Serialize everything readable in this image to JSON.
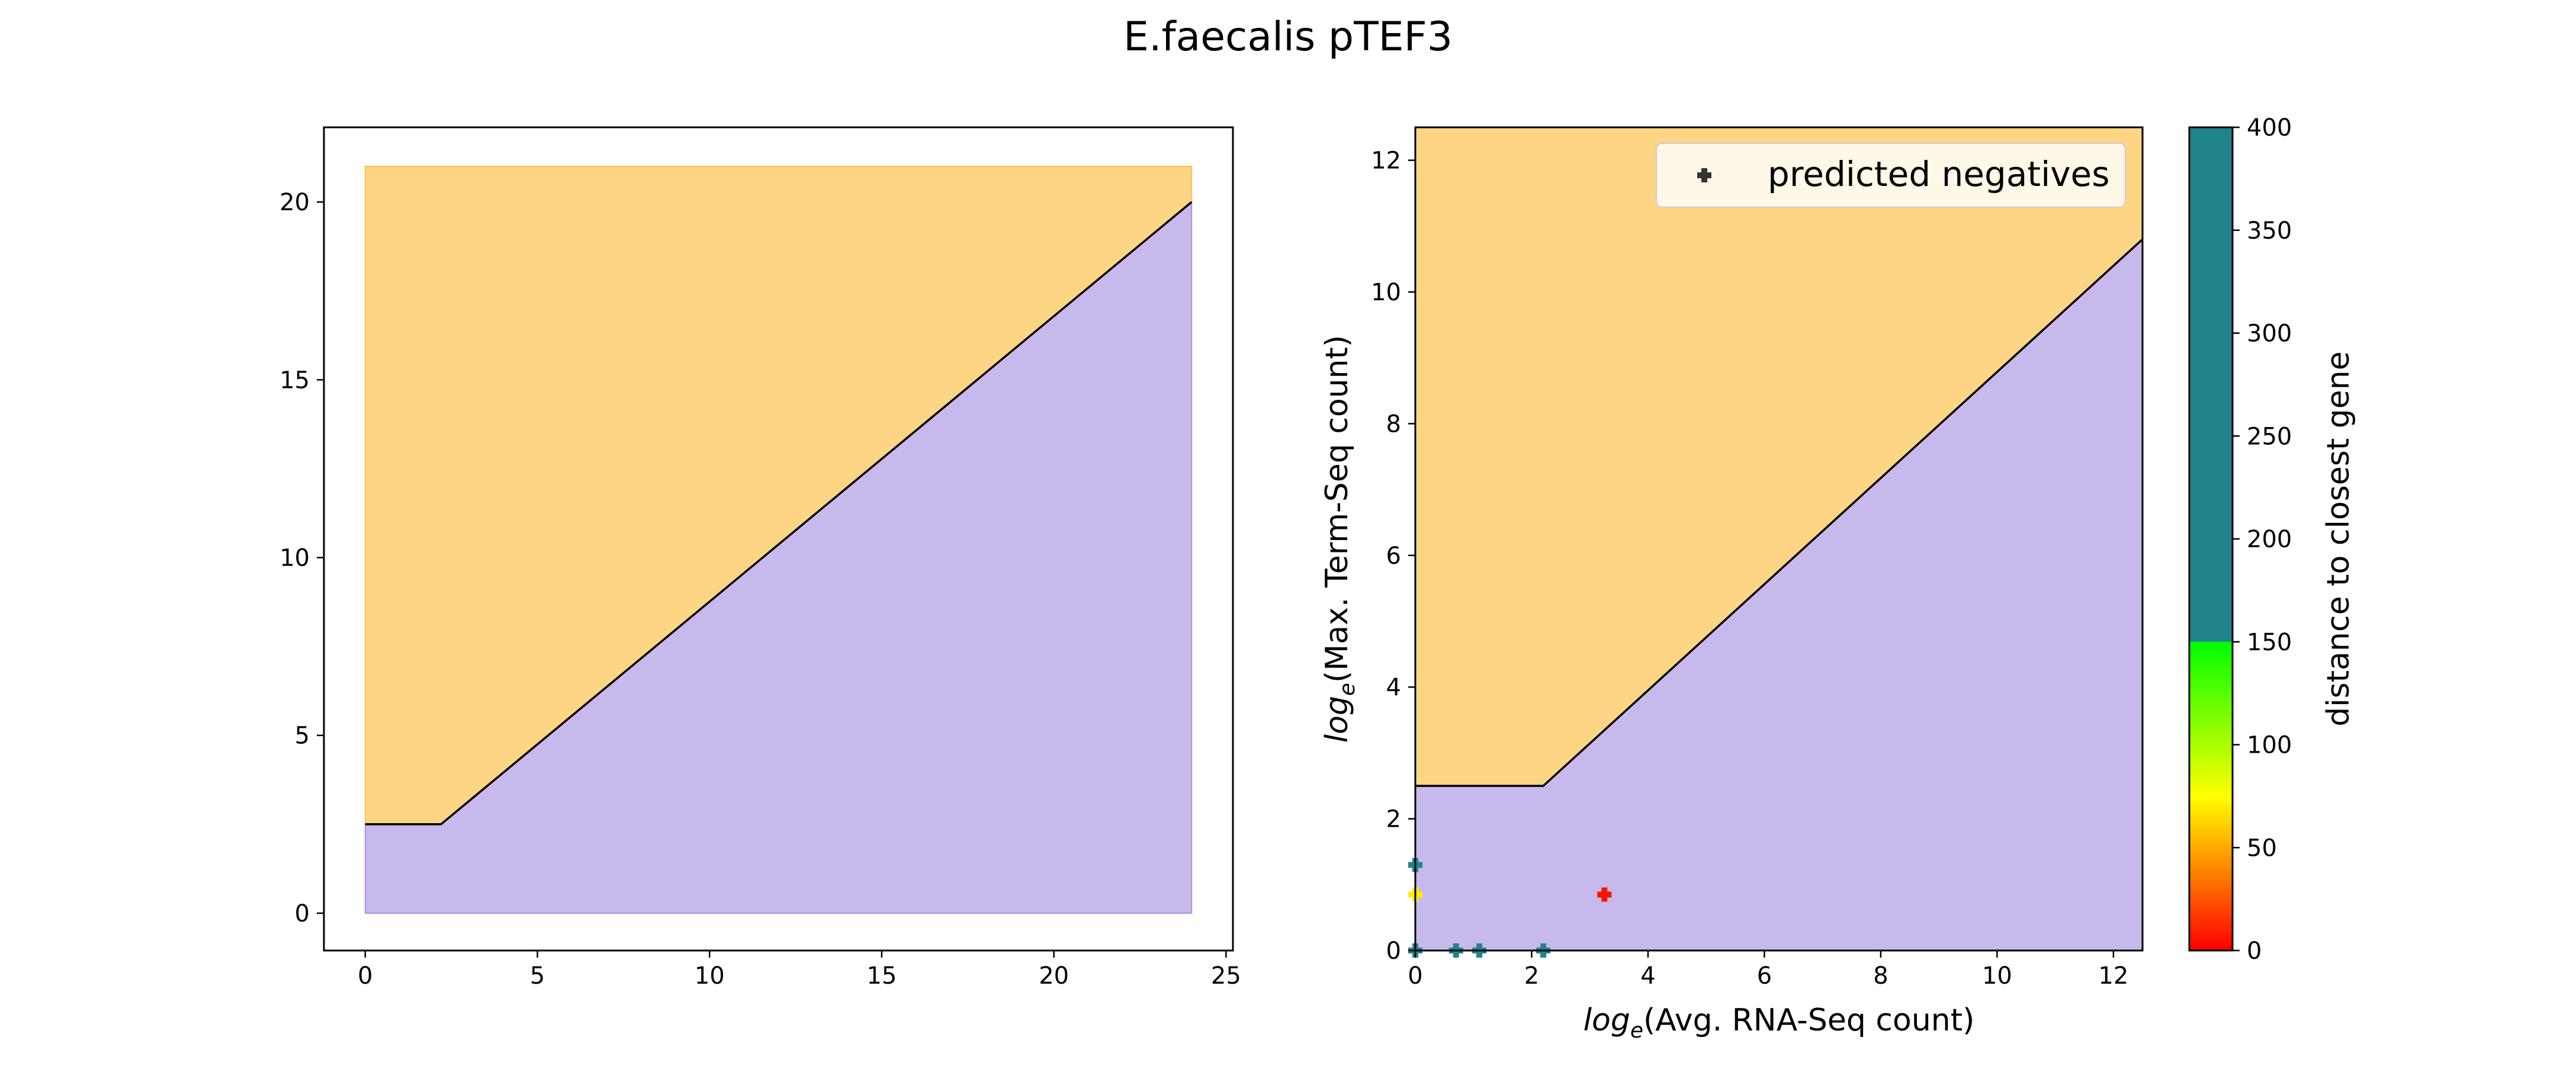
{
  "figure": {
    "title": "E.faecalis pTEF3"
  },
  "chart_data": [
    {
      "type": "area",
      "title": "",
      "xlabel": "",
      "ylabel": "",
      "xlim": [
        -1.2,
        25.2
      ],
      "ylim": [
        -1.05,
        22.1
      ],
      "xticks": [
        0,
        5,
        10,
        15,
        20,
        25
      ],
      "yticks": [
        0,
        5,
        10,
        15,
        20
      ],
      "regions": [
        {
          "name": "",
          "color": "#fdb933",
          "opacity": 0.6,
          "polygon": [
            [
              0,
              2.5
            ],
            [
              2.2,
              2.5
            ],
            [
              24,
              20
            ],
            [
              24,
              21
            ],
            [
              0,
              21
            ]
          ]
        },
        {
          "name": "",
          "color": "#9b7fdc",
          "opacity": 0.55,
          "polygon": [
            [
              0,
              0
            ],
            [
              24,
              0
            ],
            [
              24,
              20
            ],
            [
              2.2,
              2.5
            ],
            [
              0,
              2.5
            ]
          ]
        }
      ],
      "boundary": {
        "x": [
          0,
          2.2,
          24
        ],
        "y": [
          2.5,
          2.5,
          20
        ]
      },
      "grid": false
    },
    {
      "type": "scatter",
      "title": "",
      "xlabel": "log_e(Avg. RNA-Seq count)",
      "ylabel": "log_e(Max. Term-Seq count)",
      "xlabel_parts": {
        "log": "log",
        "sub": "e",
        "rest": "(Avg. RNA-Seq count)"
      },
      "ylabel_parts": {
        "log": "log",
        "sub": "e",
        "rest": "(Max. Term-Seq count)"
      },
      "xlim": [
        0,
        12.5
      ],
      "ylim": [
        0,
        12.5
      ],
      "xticks": [
        0,
        2,
        4,
        6,
        8,
        10,
        12
      ],
      "yticks": [
        0,
        2,
        4,
        6,
        8,
        10,
        12
      ],
      "regions": [
        {
          "name": "",
          "color": "#fdb933",
          "opacity": 0.6,
          "polygon": [
            [
              0,
              2.5
            ],
            [
              2.2,
              2.5
            ],
            [
              12.5,
              10.8
            ],
            [
              12.5,
              12.5
            ],
            [
              0,
              12.5
            ]
          ]
        },
        {
          "name": "",
          "color": "#9b7fdc",
          "opacity": 0.55,
          "polygon": [
            [
              0,
              0
            ],
            [
              12.5,
              0
            ],
            [
              12.5,
              10.8
            ],
            [
              2.2,
              2.5
            ],
            [
              0,
              2.5
            ]
          ]
        }
      ],
      "boundary": {
        "x": [
          0,
          2.2,
          12.5
        ],
        "y": [
          2.5,
          2.5,
          10.8
        ]
      },
      "series": [
        {
          "name": "predicted negatives",
          "marker": "plus",
          "points": [
            {
              "x": 0.0,
              "y": 1.3,
              "c": 400
            },
            {
              "x": 0.0,
              "y": 0.85,
              "c": 70
            },
            {
              "x": 0.0,
              "y": 0.0,
              "c": 400
            },
            {
              "x": 0.7,
              "y": 0.0,
              "c": 400
            },
            {
              "x": 1.1,
              "y": 0.0,
              "c": 400
            },
            {
              "x": 2.2,
              "y": 0.0,
              "c": 400
            },
            {
              "x": 3.25,
              "y": 0.85,
              "c": 5
            }
          ]
        }
      ],
      "legend": {
        "placement": "top-right",
        "label": "predicted negatives",
        "marker_color": "#333333"
      },
      "colorbar": {
        "label": "distance to closest gene",
        "range": [
          0,
          400
        ],
        "ticks": [
          0,
          50,
          100,
          150,
          200,
          250,
          300,
          350,
          400
        ],
        "stops": [
          {
            "value": 0,
            "color": "#ff0000"
          },
          {
            "value": 75,
            "color": "#ffff00"
          },
          {
            "value": 150,
            "color": "#00ff00"
          },
          {
            "value": 150,
            "color": "#21838c"
          },
          {
            "value": 400,
            "color": "#21838c"
          }
        ]
      },
      "grid": false
    }
  ]
}
